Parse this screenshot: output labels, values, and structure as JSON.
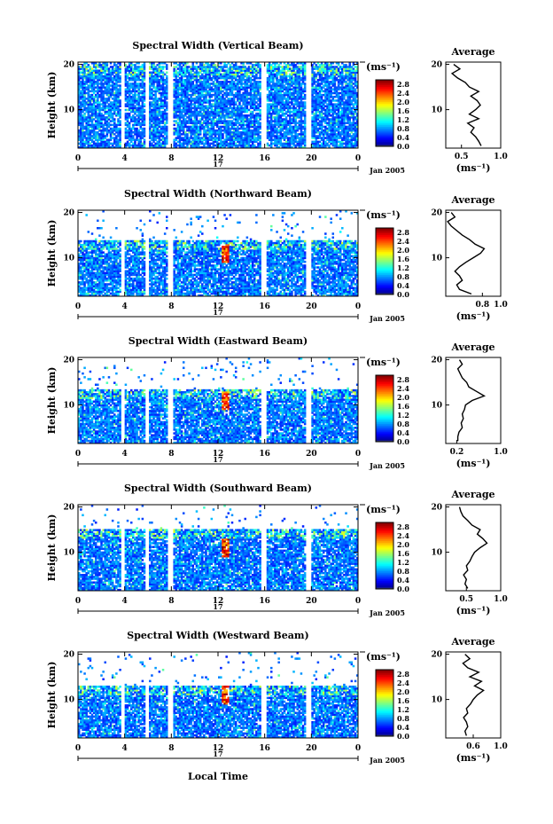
{
  "chart_data": {
    "type": "heatmap",
    "date_label": "Jan 2005",
    "day_label": "17",
    "xlabel": "Local Time",
    "ylabel": "Height (km)",
    "x_ticks": [
      "0",
      "4",
      "8",
      "12",
      "16",
      "20",
      "0"
    ],
    "y_ticks": [
      "10",
      "20"
    ],
    "xlim": [
      0,
      24
    ],
    "ylim": [
      1.5,
      20.5
    ],
    "colorbar": {
      "unit_label": "(ms⁻¹)",
      "ticks": [
        "0.0",
        "0.4",
        "0.8",
        "1.2",
        "1.6",
        "2.0",
        "2.4",
        "2.8"
      ],
      "range": [
        0.0,
        3.0
      ]
    },
    "data_gaps_hours": [
      [
        3.6,
        4.0
      ],
      [
        5.8,
        6.0
      ],
      [
        7.7,
        8.2
      ],
      [
        15.7,
        16.2
      ],
      [
        19.6,
        20.0
      ]
    ],
    "average_panel": {
      "title": "Average",
      "xlabel": "(ms⁻¹)",
      "ylim": [
        1.5,
        20.5
      ],
      "y_ticks": [
        "10",
        "20"
      ]
    },
    "panels": [
      {
        "title": "Spectral Width (Vertical Beam)",
        "top_height_km": 19.5,
        "average_xlim": [
          0.3,
          1.0
        ],
        "average_x_ticks": [
          "0.5",
          "1.0"
        ],
        "average_profile": {
          "height_km": [
            2,
            3,
            4,
            5,
            6,
            7,
            8,
            9,
            10,
            11,
            12,
            13,
            14,
            15,
            16,
            17,
            18,
            19,
            20
          ],
          "width_ms": [
            0.75,
            0.72,
            0.68,
            0.62,
            0.66,
            0.58,
            0.72,
            0.6,
            0.68,
            0.74,
            0.7,
            0.62,
            0.72,
            0.6,
            0.55,
            0.45,
            0.38,
            0.48,
            0.4
          ]
        }
      },
      {
        "title": "Spectral Width (Northward Beam)",
        "top_height_km": 14.0,
        "average_xlim": [
          0.4,
          1.0
        ],
        "average_x_ticks": [
          "0.8",
          "1.0"
        ],
        "average_profile": {
          "height_km": [
            2,
            3,
            4,
            5,
            6,
            7,
            8,
            9,
            10,
            11,
            12,
            13,
            14,
            15,
            16,
            17,
            18,
            19,
            20
          ],
          "width_ms": [
            0.68,
            0.55,
            0.52,
            0.58,
            0.55,
            0.5,
            0.55,
            0.62,
            0.7,
            0.78,
            0.82,
            0.72,
            0.66,
            0.58,
            0.52,
            0.46,
            0.42,
            0.5,
            0.46
          ]
        }
      },
      {
        "title": "Spectral Width (Eastward Beam)",
        "top_height_km": 13.5,
        "average_xlim": [
          0.0,
          1.0
        ],
        "average_x_ticks": [
          "0.2",
          "1.0"
        ],
        "average_profile": {
          "height_km": [
            2,
            3,
            4,
            5,
            6,
            7,
            8,
            9,
            10,
            11,
            12,
            13,
            14,
            15,
            16,
            17,
            18,
            19,
            20
          ],
          "width_ms": [
            0.22,
            0.22,
            0.24,
            0.3,
            0.28,
            0.32,
            0.3,
            0.34,
            0.36,
            0.48,
            0.7,
            0.56,
            0.42,
            0.38,
            0.3,
            0.26,
            0.22,
            0.3,
            0.25
          ]
        }
      },
      {
        "title": "Spectral Width (Southward Beam)",
        "top_height_km": 15.0,
        "average_xlim": [
          0.2,
          1.0
        ],
        "average_x_ticks": [
          "0.5",
          "1.0"
        ],
        "average_profile": {
          "height_km": [
            2,
            3,
            4,
            5,
            6,
            7,
            8,
            9,
            10,
            11,
            12,
            13,
            14,
            15,
            16,
            17,
            18,
            19,
            20
          ],
          "width_ms": [
            0.52,
            0.48,
            0.5,
            0.46,
            0.52,
            0.5,
            0.55,
            0.58,
            0.62,
            0.7,
            0.8,
            0.74,
            0.66,
            0.7,
            0.58,
            0.52,
            0.45,
            0.42,
            0.4
          ]
        }
      },
      {
        "title": "Spectral Width (Westward Beam)",
        "top_height_km": 13.0,
        "average_xlim": [
          0.2,
          1.0
        ],
        "average_x_ticks": [
          "0.6",
          "1.0"
        ],
        "average_profile": {
          "height_km": [
            2,
            3,
            4,
            5,
            6,
            7,
            8,
            9,
            10,
            11,
            12,
            13,
            14,
            15,
            16,
            17,
            18,
            19,
            20
          ],
          "width_ms": [
            0.5,
            0.48,
            0.52,
            0.5,
            0.46,
            0.52,
            0.5,
            0.56,
            0.6,
            0.66,
            0.75,
            0.62,
            0.72,
            0.55,
            0.68,
            0.52,
            0.45,
            0.55,
            0.48
          ]
        }
      }
    ]
  }
}
